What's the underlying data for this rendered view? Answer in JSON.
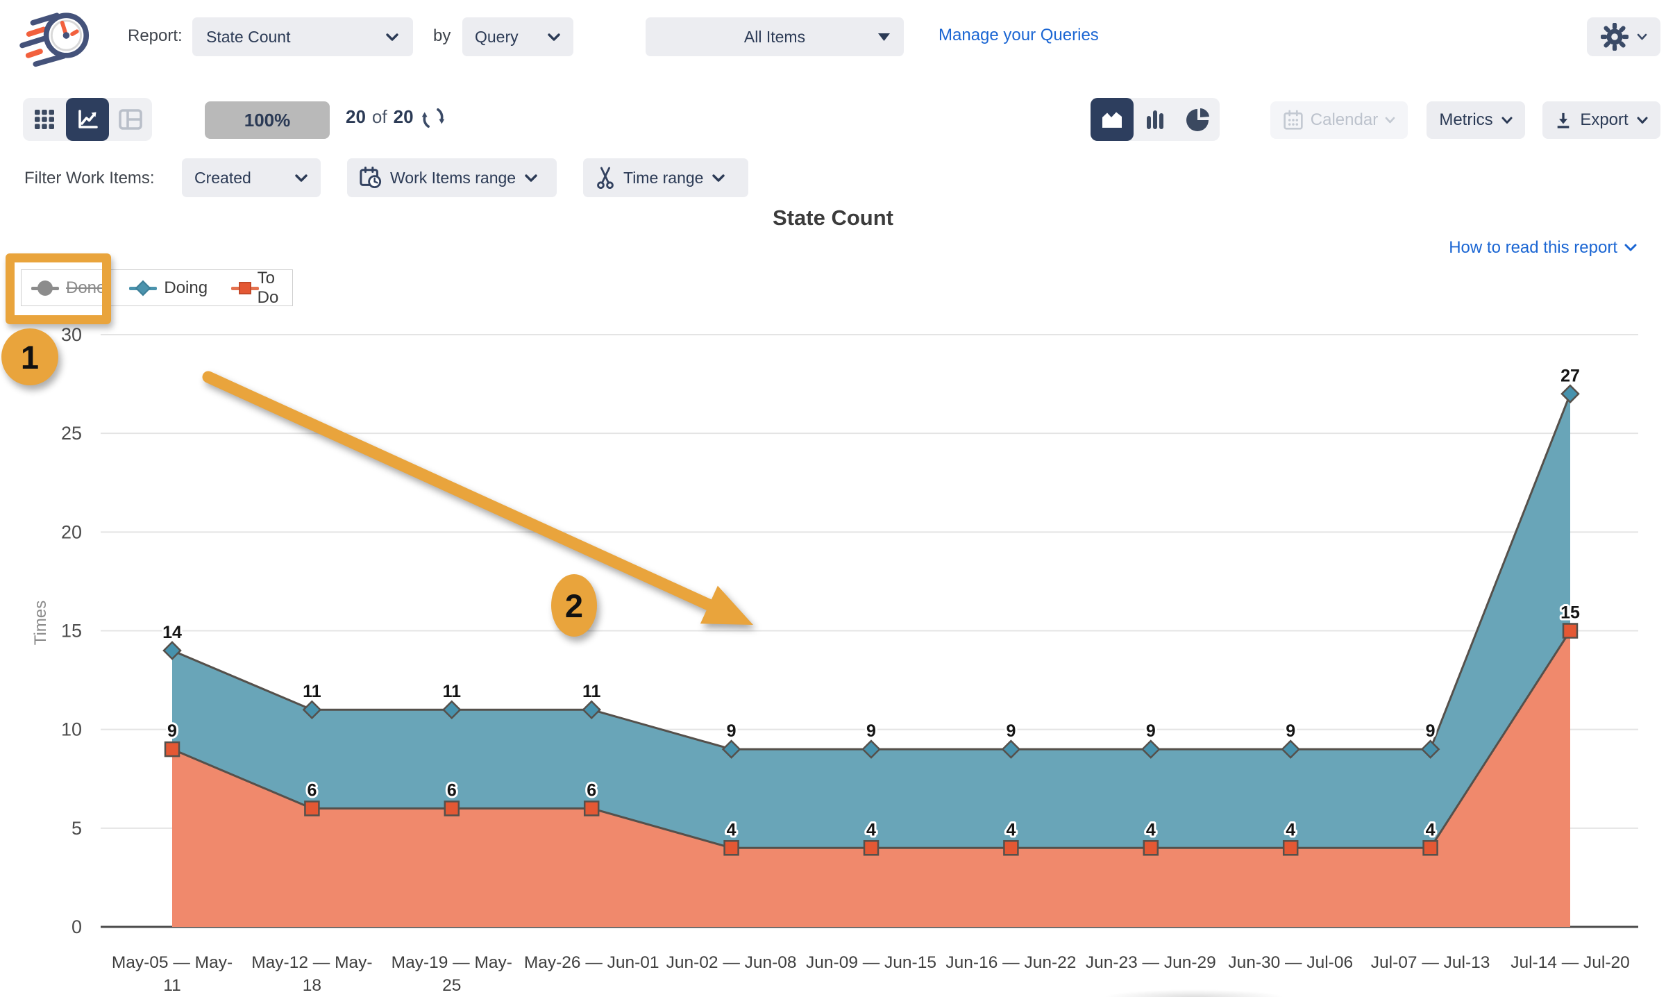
{
  "header": {
    "report_label": "Report:",
    "report_select": "State Count",
    "by_label": "by",
    "group_select": "Query",
    "query_select": "All Items",
    "manage_link": "Manage your Queries"
  },
  "toolbar": {
    "zoom_badge": "100%",
    "count_current": "20",
    "count_of_label": "of",
    "count_total": "20",
    "calendar_label": "Calendar",
    "metrics_label": "Metrics",
    "export_label": "Export"
  },
  "filters": {
    "label": "Filter Work Items:",
    "created_select": "Created",
    "work_items_range_label": "Work Items range",
    "time_range_label": "Time range"
  },
  "chart": {
    "title": "State Count",
    "how_to_read_link": "How to read this report",
    "legend": [
      {
        "label": "Done",
        "state": "disabled",
        "marker": "circle",
        "color": "#8c8c8c"
      },
      {
        "label": "Doing",
        "state": "active",
        "marker": "diamond",
        "color": "#4b93ad"
      },
      {
        "label": "To Do",
        "state": "active",
        "marker": "square",
        "color": "#e45834"
      }
    ]
  },
  "annotations": {
    "step1": "1",
    "step2": "2"
  },
  "icons": [
    "flying-clock-logo",
    "chevron-down-icon",
    "triangle-down-icon",
    "gear-icon",
    "grid-view-icon",
    "line-chart-view-icon",
    "table-view-icon",
    "refresh-icon",
    "area-chart-icon",
    "bar-chart-icon",
    "pie-chart-icon",
    "calendar-icon",
    "calendar-range-icon",
    "scissors-icon",
    "download-icon"
  ],
  "colors": {
    "accent_annotation": "#E9A43C",
    "doing_fill": "#69A5B8",
    "todo_fill": "#F0896C",
    "doing_marker": "#4792AD",
    "todo_marker": "#E45834",
    "series_stroke": "#55504B",
    "selected_nav": "#2D3E5E",
    "link_blue": "#1B66D3"
  },
  "chart_data": {
    "type": "area",
    "title": "State Count",
    "ylabel": "Times",
    "ylim": [
      0,
      30
    ],
    "yticks": [
      0,
      5,
      10,
      15,
      20,
      25,
      30
    ],
    "grid": true,
    "legend_position": "top-left",
    "categories": [
      "May-05 — May-11",
      "May-12 — May-18",
      "May-19 — May-25",
      "May-26 — Jun-01",
      "Jun-02 — Jun-08",
      "Jun-09 — Jun-15",
      "Jun-16 — Jun-22",
      "Jun-23 — Jun-29",
      "Jun-30 — Jul-06",
      "Jul-07 — Jul-13",
      "Jul-14 — Jul-20"
    ],
    "category_display": [
      [
        "May-05 — May-",
        "11"
      ],
      [
        "May-12 — May-",
        "18"
      ],
      [
        "May-19 — May-",
        "25"
      ],
      [
        "May-26 — Jun-01"
      ],
      [
        "Jun-02 — Jun-08"
      ],
      [
        "Jun-09 — Jun-15"
      ],
      [
        "Jun-16 — Jun-22"
      ],
      [
        "Jun-23 — Jun-29"
      ],
      [
        "Jun-30 — Jul-06"
      ],
      [
        "Jul-07 — Jul-13"
      ],
      [
        "Jul-14 — Jul-20"
      ]
    ],
    "series": [
      {
        "name": "Doing",
        "marker": "diamond",
        "fill": "#69A5B8",
        "marker_color": "#4792AD",
        "values": [
          14,
          11,
          11,
          11,
          9,
          9,
          9,
          9,
          9,
          9,
          27
        ]
      },
      {
        "name": "To Do",
        "marker": "square",
        "fill": "#F0896C",
        "marker_color": "#E45834",
        "values": [
          9,
          6,
          6,
          6,
          4,
          4,
          4,
          4,
          4,
          4,
          15
        ]
      },
      {
        "name": "Done",
        "marker": "circle",
        "visible": false,
        "values": []
      }
    ]
  }
}
